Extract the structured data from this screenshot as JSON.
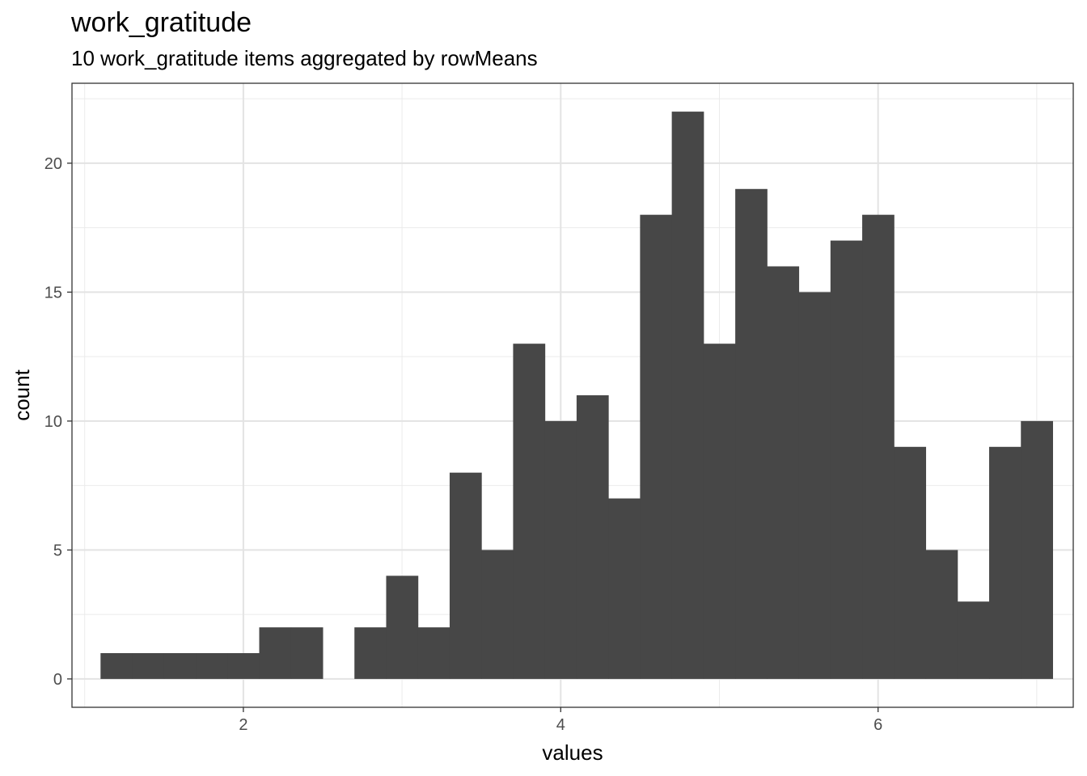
{
  "chart_data": {
    "type": "bar",
    "title": "work_gratitude",
    "subtitle": "10 work_gratitude items aggregated by rowMeans",
    "xlabel": "values",
    "ylabel": "count",
    "xlim": [
      0.92,
      7.23
    ],
    "ylim": [
      -1.1,
      23.1
    ],
    "x_major_ticks": [
      2,
      4,
      6
    ],
    "x_minor_ticks": [
      1,
      3,
      5,
      7
    ],
    "y_major_ticks": [
      0,
      5,
      10,
      15,
      20
    ],
    "y_minor_ticks": [
      2.5,
      7.5,
      12.5,
      17.5,
      22.5
    ],
    "x_tick_labels": [
      "2",
      "4",
      "6"
    ],
    "y_tick_labels": [
      "0",
      "5",
      "10",
      "15",
      "20"
    ],
    "grid": true,
    "bar_color": "#474747",
    "bins": [
      {
        "x0": 1.1,
        "x1": 1.3,
        "count": 1
      },
      {
        "x0": 1.3,
        "x1": 1.5,
        "count": 1
      },
      {
        "x0": 1.5,
        "x1": 1.7,
        "count": 1
      },
      {
        "x0": 1.7,
        "x1": 1.9,
        "count": 1
      },
      {
        "x0": 1.9,
        "x1": 2.1,
        "count": 1
      },
      {
        "x0": 2.1,
        "x1": 2.3,
        "count": 2
      },
      {
        "x0": 2.3,
        "x1": 2.5,
        "count": 2
      },
      {
        "x0": 2.5,
        "x1": 2.7,
        "count": 0
      },
      {
        "x0": 2.7,
        "x1": 2.9,
        "count": 2
      },
      {
        "x0": 2.9,
        "x1": 3.1,
        "count": 4
      },
      {
        "x0": 3.1,
        "x1": 3.3,
        "count": 2
      },
      {
        "x0": 3.3,
        "x1": 3.5,
        "count": 8
      },
      {
        "x0": 3.5,
        "x1": 3.7,
        "count": 5
      },
      {
        "x0": 3.7,
        "x1": 3.9,
        "count": 13
      },
      {
        "x0": 3.9,
        "x1": 4.1,
        "count": 10
      },
      {
        "x0": 4.1,
        "x1": 4.3,
        "count": 11
      },
      {
        "x0": 4.3,
        "x1": 4.5,
        "count": 7
      },
      {
        "x0": 4.5,
        "x1": 4.7,
        "count": 18
      },
      {
        "x0": 4.7,
        "x1": 4.9,
        "count": 22
      },
      {
        "x0": 4.9,
        "x1": 5.1,
        "count": 13
      },
      {
        "x0": 5.1,
        "x1": 5.3,
        "count": 19
      },
      {
        "x0": 5.3,
        "x1": 5.5,
        "count": 16
      },
      {
        "x0": 5.5,
        "x1": 5.7,
        "count": 15
      },
      {
        "x0": 5.7,
        "x1": 5.9,
        "count": 17
      },
      {
        "x0": 5.9,
        "x1": 6.1,
        "count": 18
      },
      {
        "x0": 6.1,
        "x1": 6.3,
        "count": 9
      },
      {
        "x0": 6.3,
        "x1": 6.5,
        "count": 5
      },
      {
        "x0": 6.5,
        "x1": 6.7,
        "count": 3
      },
      {
        "x0": 6.7,
        "x1": 6.9,
        "count": 9
      },
      {
        "x0": 6.9,
        "x1": 7.1,
        "count": 10
      }
    ]
  }
}
